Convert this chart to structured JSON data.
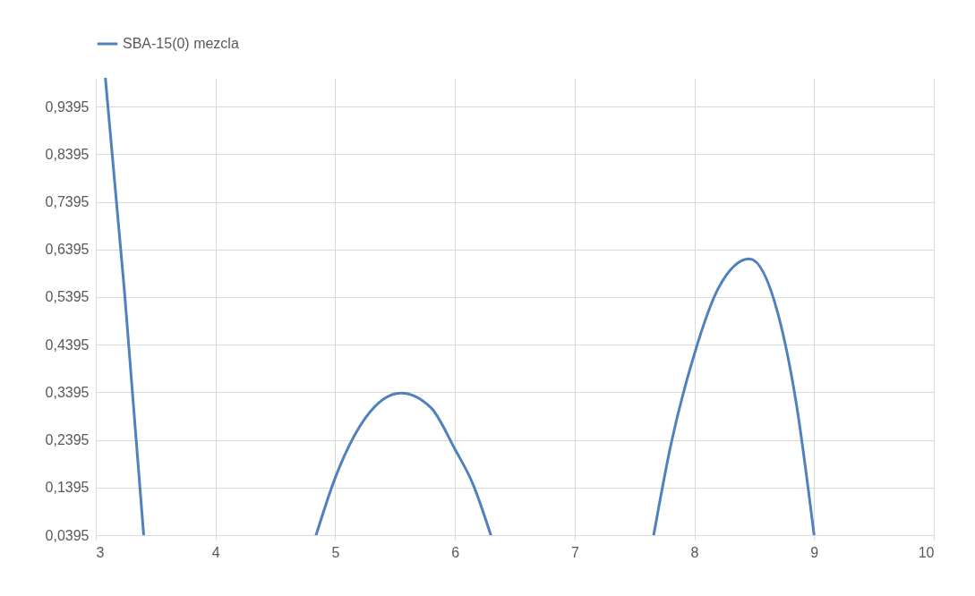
{
  "chart_data": {
    "type": "line",
    "x": [
      3.08,
      3.24,
      3.4,
      3.6,
      4.84,
      5.0,
      5.25,
      5.55,
      5.8,
      6.0,
      6.15,
      6.3,
      7.0,
      7.66,
      7.8,
      8.0,
      8.2,
      8.46,
      8.7,
      8.85,
      9.0
    ],
    "series": [
      {
        "name": "SBA-15(0) mezcla",
        "color": "#4f81bd",
        "values": [
          1.0,
          0.55,
          0.0395,
          null,
          0.0395,
          0.16,
          0.285,
          0.338,
          0.307,
          0.22,
          0.147,
          0.0395,
          null,
          0.0395,
          0.225,
          0.42,
          0.558,
          0.62,
          0.503,
          0.318,
          0.0395
        ]
      }
    ],
    "xlim": [
      3,
      10
    ],
    "xticks": [
      3,
      4,
      5,
      6,
      7,
      8,
      9,
      10
    ],
    "ylim": [
      0.0395,
      1.0
    ],
    "yticks": [
      {
        "value": 0.0395,
        "label": "0,0395"
      },
      {
        "value": 0.1395,
        "label": "0,1395"
      },
      {
        "value": 0.2395,
        "label": "0,2395"
      },
      {
        "value": 0.3395,
        "label": "0,3395"
      },
      {
        "value": 0.4395,
        "label": "0,4395"
      },
      {
        "value": 0.5395,
        "label": "0,5395"
      },
      {
        "value": 0.6395,
        "label": "0,6395"
      },
      {
        "value": 0.7395,
        "label": "0,7395"
      },
      {
        "value": 0.8395,
        "label": "0,8395"
      },
      {
        "value": 0.9395,
        "label": "0,9395"
      }
    ],
    "grid": true,
    "legend": "top",
    "line_style": "solid"
  }
}
